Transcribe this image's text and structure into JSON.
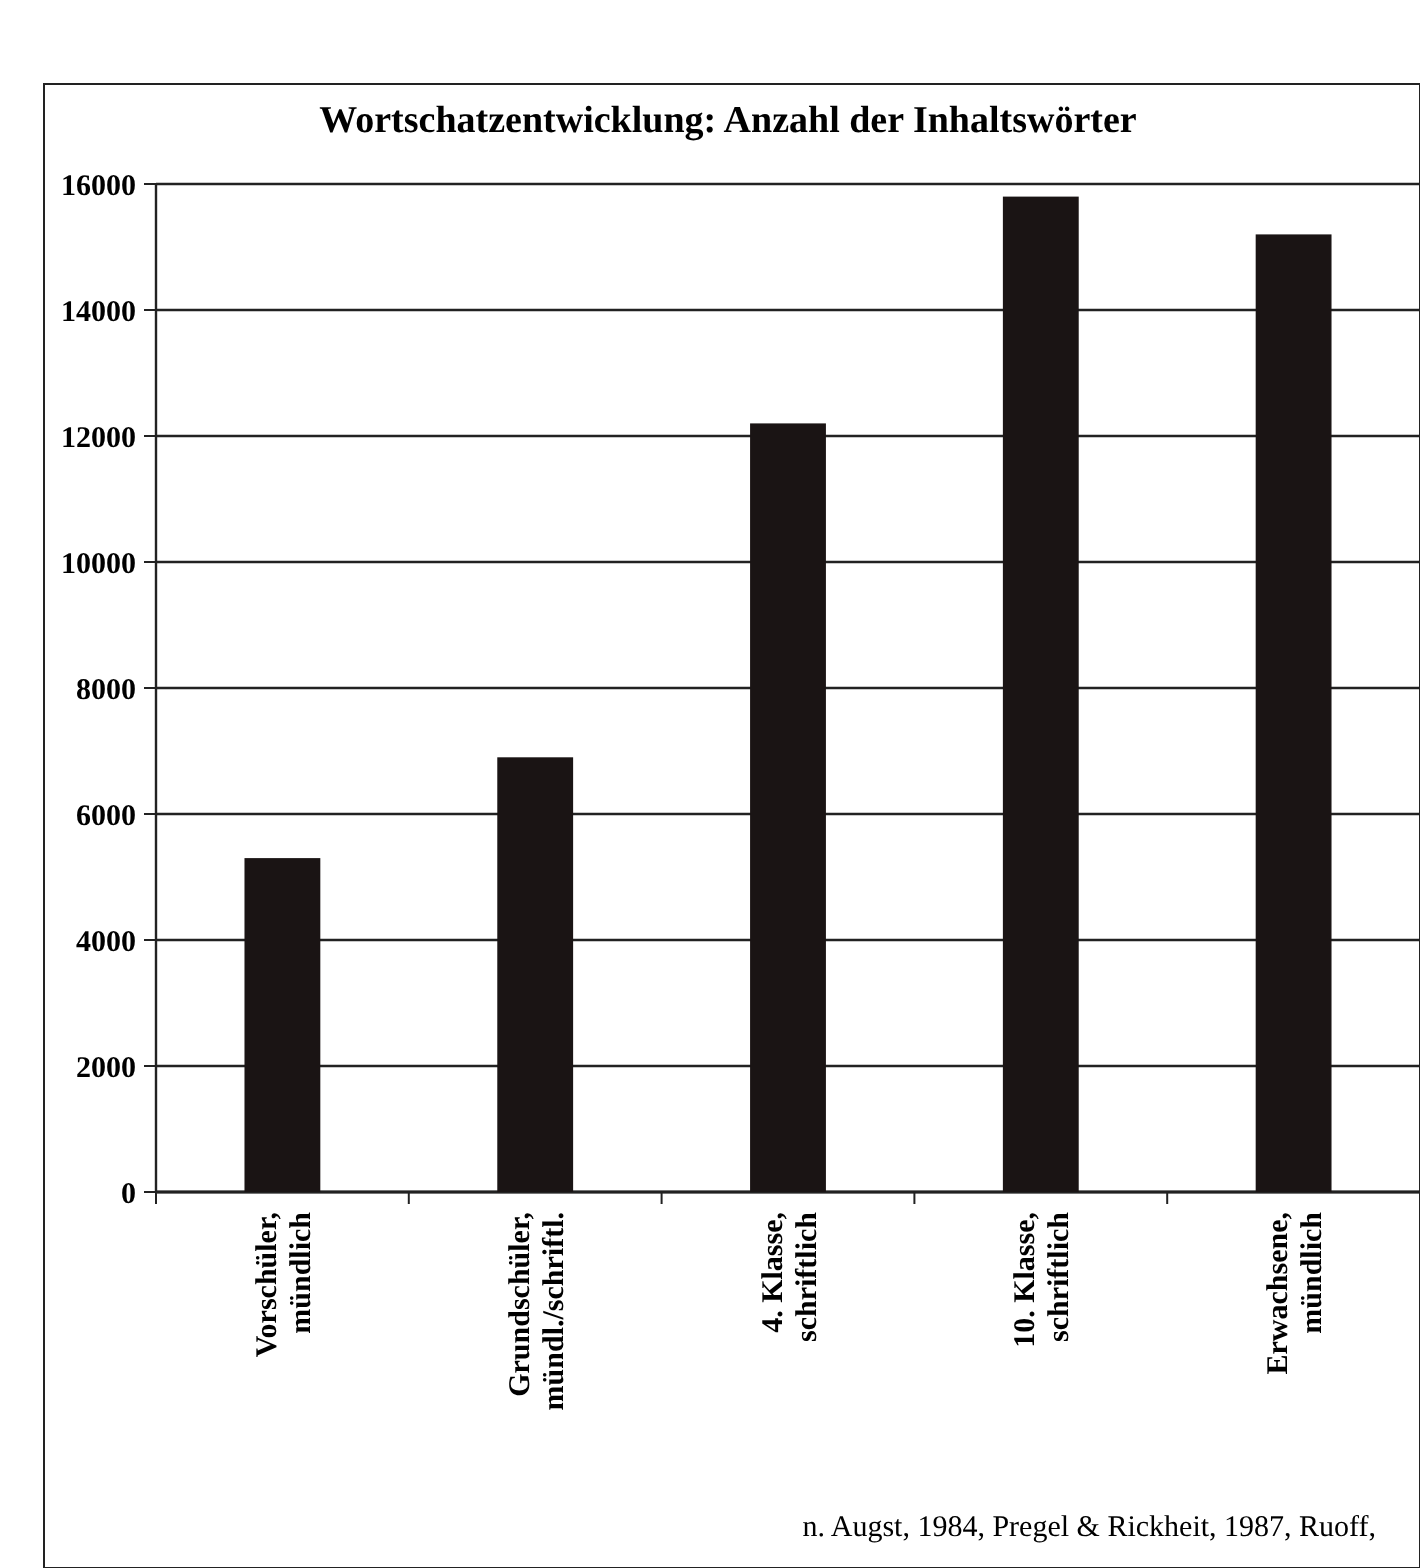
{
  "chart_data": {
    "type": "bar",
    "title": "Wortschatzentwicklung: Anzahl der Inhaltswörter",
    "categories": [
      "Vorschüler,\nmündlich",
      "Grundschüler,\nmündl./schriftl.",
      "4. Klasse,\nschriftlich",
      "10. Klasse,\nschriftlich",
      "Erwachsene,\nmündlich"
    ],
    "values": [
      5300,
      6900,
      12200,
      15800,
      15200
    ],
    "color": "#1a1414",
    "ylim": [
      0,
      16000
    ],
    "yticks": [
      0,
      2000,
      4000,
      6000,
      8000,
      10000,
      12000,
      14000,
      16000
    ],
    "grid": "y",
    "annotations": [
      "n. Augst, 1984, Pregel & Rickheit, 1987, Ruoff,"
    ]
  }
}
